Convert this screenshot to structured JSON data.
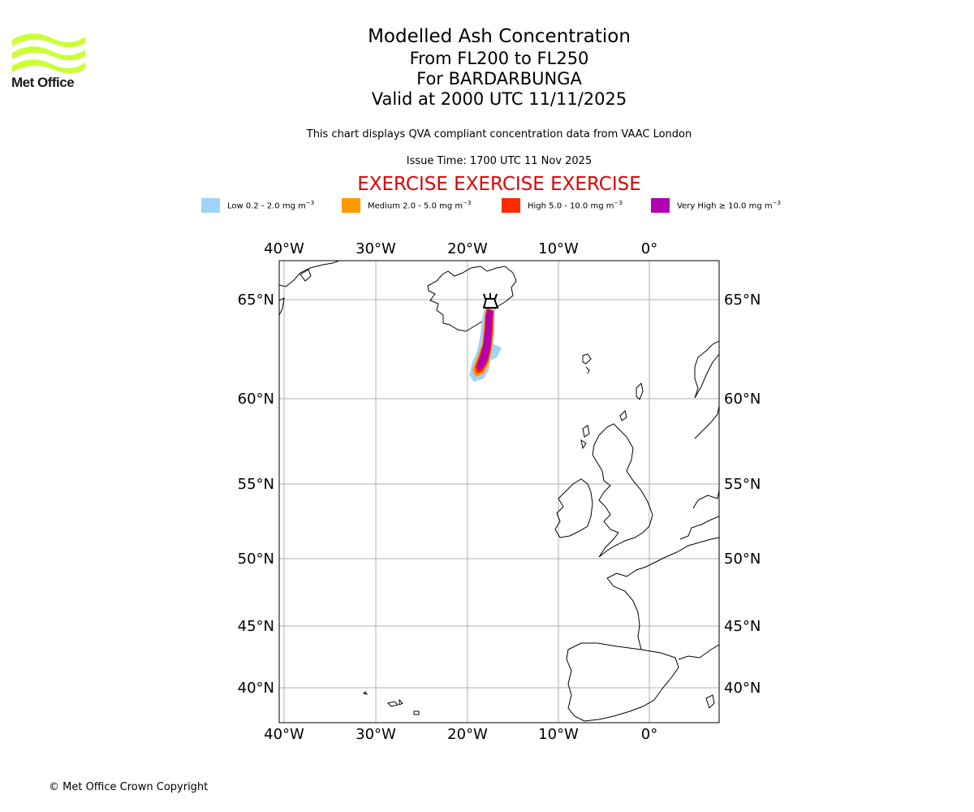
{
  "header": {
    "logo_text": "Met Office",
    "title": "Modelled Ash Concentration",
    "flight_levels": "From FL200 to FL250",
    "volcano": "For BARDARBUNGA",
    "valid": "Valid at 2000 UTC 11/11/2025",
    "description": "This chart displays QVA compliant concentration data from VAAC London",
    "issue_time": "Issue Time: 1700 UTC 11 Nov 2025",
    "exercise": "EXERCISE EXERCISE EXERCISE"
  },
  "legend": [
    {
      "label": "Low 0.2 - 2.0 mg m",
      "unit_exp": "−3",
      "color": "#a0d2fa"
    },
    {
      "label": "Medium 2.0 - 5.0 mg m",
      "unit_exp": "−3",
      "color": "#ff9900"
    },
    {
      "label": "High 5.0 - 10.0 mg m",
      "unit_exp": "−3",
      "color": "#ff2a00"
    },
    {
      "label": "Very High  ≥  10.0 mg m",
      "unit_exp": "−3",
      "color": "#b000b0"
    }
  ],
  "map": {
    "lon_ticks": [
      "40°W",
      "30°W",
      "20°W",
      "10°W",
      "0°"
    ],
    "lat_ticks": [
      "65°N",
      "60°N",
      "55°N",
      "50°N",
      "45°N",
      "40°N"
    ],
    "volcano_icon": "volcano-icon"
  },
  "footer": {
    "copyright": "© Met Office Crown Copyright"
  }
}
